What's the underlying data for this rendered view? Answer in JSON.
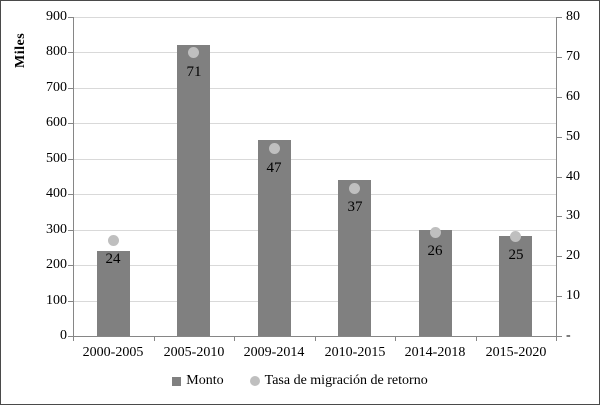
{
  "chart_data": {
    "type": "bar",
    "title": "",
    "categories": [
      "2000-2005",
      "2005-2010",
      "2009-2014",
      "2010-2015",
      "2014-2018",
      "2015-2020"
    ],
    "series": [
      {
        "name": "Monto",
        "type": "bar",
        "axis": "left",
        "color": "#808080",
        "values": [
          240,
          822,
          553,
          440,
          298,
          282
        ]
      },
      {
        "name": "Tasa de migración de retorno",
        "type": "scatter",
        "axis": "right",
        "color": "#bfbfbf",
        "values": [
          24,
          71,
          47,
          37,
          26,
          25
        ],
        "data_labels": [
          "24",
          "71",
          "47",
          "37",
          "26",
          "25"
        ]
      }
    ],
    "left_axis": {
      "title": "Miles",
      "min": 0,
      "max": 900,
      "step": 100,
      "tick_labels": [
        "0",
        "100",
        "200",
        "300",
        "400",
        "500",
        "600",
        "700",
        "800",
        "900"
      ]
    },
    "right_axis": {
      "min": 0,
      "max": 80,
      "step": 10,
      "tick_labels": [
        "-",
        "10",
        "20",
        "30",
        "40",
        "50",
        "60",
        "70",
        "80"
      ]
    },
    "legend": {
      "position": "bottom",
      "entries": [
        {
          "label": "Monto",
          "marker": "square",
          "color": "#808080"
        },
        {
          "label": "Tasa de migración de retorno",
          "marker": "circle",
          "color": "#bfbfbf"
        }
      ]
    },
    "grid": true,
    "colors": {
      "bar": "#808080",
      "dot": "#bfbfbf",
      "gridline": "#d9d9d9",
      "axis": "#868686",
      "text": "#000000",
      "border": "#4a4a4a"
    }
  }
}
